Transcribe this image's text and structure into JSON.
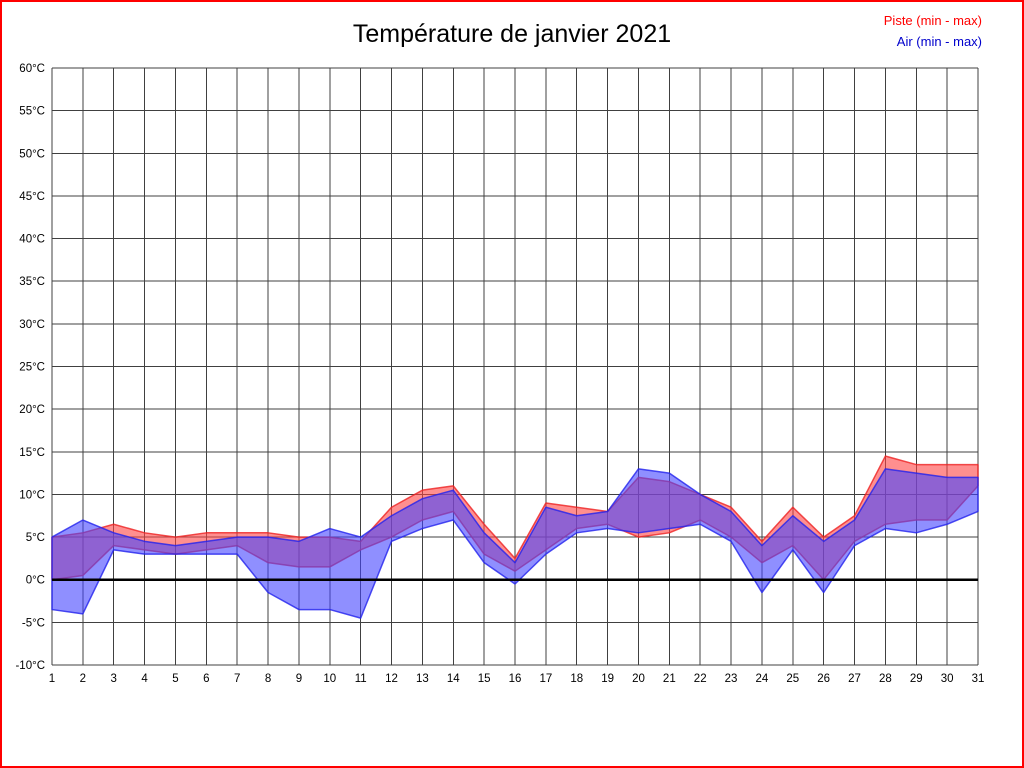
{
  "page": {
    "background": "#ffffff",
    "border_color": "#ff0000"
  },
  "legend": {
    "piste_label": "Piste (min - max)",
    "air_label": "Air (min - max)",
    "piste_color": "#ff0000",
    "air_color": "#0000cc"
  },
  "chart_data": {
    "type": "area",
    "title": "Température de janvier 2021",
    "xlabel": "",
    "ylabel": "",
    "x": [
      1,
      2,
      3,
      4,
      5,
      6,
      7,
      8,
      9,
      10,
      11,
      12,
      13,
      14,
      15,
      16,
      17,
      18,
      19,
      20,
      21,
      22,
      23,
      24,
      25,
      26,
      27,
      28,
      29,
      30,
      31
    ],
    "ylim": [
      -10,
      60
    ],
    "ytick_step": 5,
    "ytick_suffix": "°C",
    "grid": true,
    "grid_color": "#404040",
    "zero_line": true,
    "zero_line_color": "#000000",
    "legend_position": "top-right",
    "series": [
      {
        "name": "Piste (min - max)",
        "color": "#ff4444",
        "edge_color": "#ee2222",
        "min": [
          0,
          0.5,
          4,
          3.5,
          3,
          3.5,
          4,
          2,
          1.5,
          1.5,
          3.5,
          5,
          7,
          8,
          3,
          1,
          3.5,
          6,
          6.5,
          5,
          5.5,
          7,
          5,
          2,
          4,
          0,
          4.5,
          6.5,
          7,
          7,
          11
        ],
        "max": [
          5,
          5.5,
          6.5,
          5.5,
          5,
          5.5,
          5.5,
          5.5,
          5,
          5,
          4.5,
          8.5,
          10.5,
          11,
          6.5,
          2.5,
          9,
          8.5,
          8,
          12,
          11.5,
          10,
          8.5,
          4.5,
          8.5,
          5,
          7.5,
          14.5,
          13.5,
          13.5,
          13.5
        ]
      },
      {
        "name": "Air (min - max)",
        "color": "#4444ff",
        "edge_color": "#2222ee",
        "min": [
          -3.5,
          -4,
          3.5,
          3,
          3,
          3,
          3,
          -1.5,
          -3.5,
          -3.5,
          -4.5,
          4.5,
          6,
          7,
          2,
          -0.5,
          3,
          5.5,
          6,
          5.5,
          6,
          6.5,
          4.5,
          -1.5,
          3.5,
          -1.5,
          4,
          6,
          5.5,
          6.5,
          8
        ],
        "max": [
          5,
          7,
          5.5,
          4.5,
          4,
          4.5,
          5,
          5,
          4.5,
          6,
          5,
          7.5,
          9.5,
          10.5,
          5.5,
          2,
          8.5,
          7.5,
          8,
          13,
          12.5,
          10,
          8,
          4,
          7.5,
          4.5,
          7,
          13,
          12.5,
          12,
          12
        ]
      }
    ]
  }
}
